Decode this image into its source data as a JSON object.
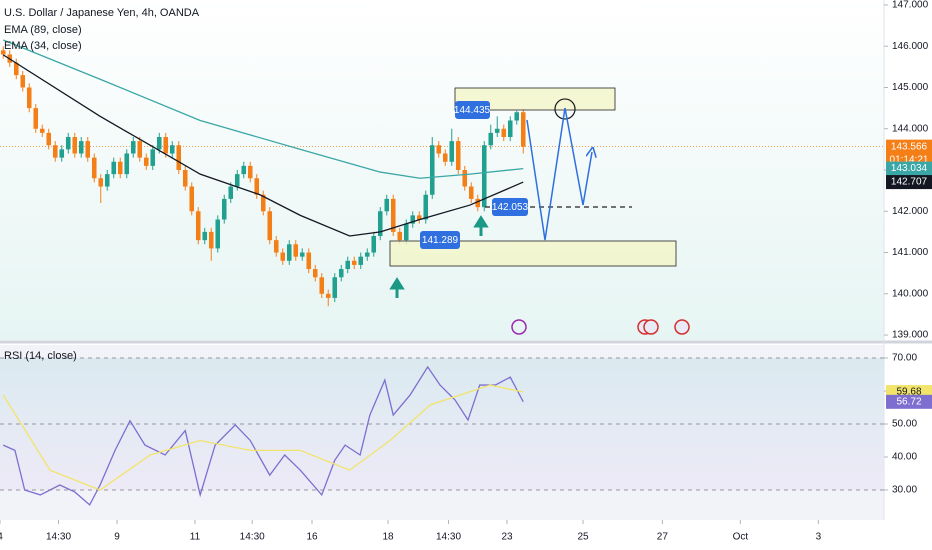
{
  "chart_data": [
    {
      "type": "candlestick",
      "title": "U.S. Dollar / Japanese Yen, 4h, OANDA",
      "up_color": "#22a08f",
      "down_color": "#f57f17",
      "ohlc": [
        [
          145.9,
          146.0,
          145.7,
          145.8
        ],
        [
          145.8,
          145.9,
          145.5,
          145.6
        ],
        [
          145.6,
          145.7,
          145.2,
          145.3
        ],
        [
          145.3,
          145.4,
          144.9,
          145.0
        ],
        [
          145.0,
          145.1,
          144.4,
          144.5
        ],
        [
          144.5,
          144.6,
          143.9,
          144.0
        ],
        [
          144.0,
          144.1,
          143.8,
          143.9
        ],
        [
          143.9,
          144.0,
          143.5,
          143.6
        ],
        [
          143.6,
          143.7,
          143.2,
          143.3
        ],
        [
          143.3,
          143.6,
          143.2,
          143.5
        ],
        [
          143.5,
          143.9,
          143.4,
          143.8
        ],
        [
          143.8,
          143.9,
          143.3,
          143.4
        ],
        [
          143.4,
          143.8,
          143.3,
          143.7
        ],
        [
          143.7,
          143.8,
          143.2,
          143.3
        ],
        [
          143.3,
          143.4,
          142.7,
          142.8
        ],
        [
          142.8,
          142.9,
          142.2,
          142.6
        ],
        [
          142.6,
          143.0,
          142.5,
          142.9
        ],
        [
          142.9,
          143.3,
          142.8,
          143.2
        ],
        [
          143.2,
          143.3,
          142.8,
          142.9
        ],
        [
          142.9,
          143.5,
          142.8,
          143.4
        ],
        [
          143.4,
          143.8,
          143.3,
          143.7
        ],
        [
          143.7,
          143.8,
          143.2,
          143.3
        ],
        [
          143.3,
          143.4,
          143.0,
          143.1
        ],
        [
          143.1,
          143.6,
          143.0,
          143.5
        ],
        [
          143.5,
          143.9,
          143.4,
          143.8
        ],
        [
          143.8,
          143.9,
          143.3,
          143.4
        ],
        [
          143.4,
          143.7,
          143.3,
          143.6
        ],
        [
          143.6,
          143.7,
          142.9,
          143.0
        ],
        [
          143.0,
          143.1,
          142.5,
          142.6
        ],
        [
          142.6,
          142.7,
          141.9,
          142.0
        ],
        [
          142.0,
          142.1,
          141.2,
          141.3
        ],
        [
          141.3,
          141.6,
          141.2,
          141.5
        ],
        [
          141.5,
          141.6,
          140.8,
          141.1
        ],
        [
          141.1,
          141.9,
          141.0,
          141.8
        ],
        [
          141.8,
          142.4,
          141.7,
          142.3
        ],
        [
          142.3,
          142.7,
          142.2,
          142.6
        ],
        [
          142.6,
          143.0,
          142.5,
          142.9
        ],
        [
          142.9,
          143.2,
          142.8,
          143.1
        ],
        [
          143.1,
          143.2,
          142.7,
          142.8
        ],
        [
          142.8,
          142.9,
          142.3,
          142.4
        ],
        [
          142.4,
          142.5,
          141.9,
          142.0
        ],
        [
          142.0,
          142.1,
          141.2,
          141.3
        ],
        [
          141.3,
          141.4,
          140.9,
          141.0
        ],
        [
          141.0,
          141.1,
          140.7,
          140.8
        ],
        [
          140.8,
          141.3,
          140.7,
          141.2
        ],
        [
          141.2,
          141.3,
          140.8,
          140.9
        ],
        [
          140.9,
          141.1,
          140.8,
          141.0
        ],
        [
          141.0,
          141.1,
          140.5,
          140.6
        ],
        [
          140.6,
          140.7,
          140.3,
          140.4
        ],
        [
          140.4,
          140.5,
          139.9,
          140.0
        ],
        [
          140.0,
          140.1,
          139.7,
          139.9
        ],
        [
          139.9,
          140.5,
          139.8,
          140.4
        ],
        [
          140.4,
          140.7,
          140.3,
          140.6
        ],
        [
          140.6,
          140.9,
          140.5,
          140.8
        ],
        [
          140.8,
          140.9,
          140.6,
          140.7
        ],
        [
          140.7,
          141.0,
          140.6,
          140.9
        ],
        [
          140.9,
          141.1,
          140.8,
          141.0
        ],
        [
          141.0,
          141.5,
          140.9,
          141.4
        ],
        [
          141.4,
          142.1,
          141.3,
          142.0
        ],
        [
          142.0,
          142.4,
          141.9,
          142.3
        ],
        [
          142.3,
          142.4,
          141.4,
          141.5
        ],
        [
          141.5,
          141.6,
          141.2,
          141.3
        ],
        [
          141.3,
          141.8,
          141.2,
          141.7
        ],
        [
          141.7,
          142.0,
          141.6,
          141.9
        ],
        [
          141.9,
          142.0,
          141.7,
          141.8
        ],
        [
          141.8,
          142.5,
          141.7,
          142.4
        ],
        [
          142.4,
          143.8,
          142.3,
          143.6
        ],
        [
          143.6,
          143.7,
          143.3,
          143.4
        ],
        [
          143.4,
          143.5,
          143.1,
          143.2
        ],
        [
          143.2,
          144.0,
          143.1,
          143.7
        ],
        [
          143.7,
          143.8,
          142.9,
          143.0
        ],
        [
          143.0,
          143.1,
          142.5,
          142.6
        ],
        [
          142.6,
          142.7,
          142.2,
          142.3
        ],
        [
          142.3,
          142.4,
          142.0,
          142.1
        ],
        [
          142.1,
          143.7,
          142.0,
          143.6
        ],
        [
          143.6,
          144.1,
          143.5,
          143.9
        ],
        [
          143.9,
          144.3,
          143.8,
          144.0
        ],
        [
          144.0,
          144.1,
          143.7,
          143.8
        ],
        [
          143.8,
          144.3,
          143.7,
          144.2
        ],
        [
          144.2,
          144.435,
          144.1,
          144.4
        ],
        [
          144.4,
          144.5,
          143.4,
          143.566
        ]
      ],
      "series": [
        {
          "name": "EMA (89, close)",
          "color": "#3aa6a6",
          "x": [
            0,
            14.9,
            30.3,
            45.7,
            58,
            64.1,
            71.8,
            80
          ],
          "values": [
            146.15,
            145.2,
            144.2,
            143.5,
            142.95,
            142.8,
            142.9,
            143.034
          ]
        },
        {
          "name": "EMA (34, close)",
          "color": "#131722",
          "x": [
            0,
            14.9,
            22.6,
            30.3,
            39.5,
            45.7,
            53.3,
            58,
            64.1,
            71.8,
            80
          ],
          "values": [
            145.79,
            144.3,
            143.6,
            142.9,
            142.4,
            141.9,
            141.4,
            141.5,
            141.8,
            142.15,
            142.707
          ]
        }
      ],
      "last_price_countdown": "01:14:21",
      "annotations": [
        144.435,
        142.053,
        141.289
      ],
      "xlim": [
        -0.5,
        135.5
      ],
      "xticks": [
        {
          "value": -0.5,
          "label": "4"
        },
        {
          "value": 8.5,
          "label": "14:30"
        },
        {
          "value": 17.5,
          "label": "9"
        },
        {
          "value": 29.5,
          "label": "11"
        },
        {
          "value": 38.3,
          "label": "14:30"
        },
        {
          "value": 47.5,
          "label": "16"
        },
        {
          "value": 59.2,
          "label": "18"
        },
        {
          "value": 68.5,
          "label": "14:30"
        },
        {
          "value": 77.5,
          "label": "23"
        },
        {
          "value": 89.2,
          "label": "25"
        },
        {
          "value": 101.4,
          "label": "27"
        },
        {
          "value": 113.4,
          "label": "Oct"
        },
        {
          "value": 125.4,
          "label": "3"
        }
      ],
      "ylim": [
        138.88,
        147.12
      ],
      "yticks": [
        {
          "value": 139,
          "label": "139.000"
        },
        {
          "value": 140,
          "label": "140.000"
        },
        {
          "value": 141,
          "label": "141.000"
        },
        {
          "value": 142,
          "label": "142.000"
        },
        {
          "value": 143,
          "label": "143.000"
        },
        {
          "value": 144,
          "label": "144.000"
        },
        {
          "value": 145,
          "label": "145.000"
        },
        {
          "value": 146,
          "label": "146.000"
        },
        {
          "value": 147,
          "label": "147.000"
        }
      ]
    },
    {
      "type": "line",
      "title": "RSI (14, close)",
      "series": [
        {
          "color": "#7e6ed0",
          "x": [
            0,
            1.8,
            3.3,
            5.7,
            8.7,
            11,
            13.3,
            14.9,
            17.2,
            19.5,
            21.8,
            24.9,
            28,
            30.3,
            32.6,
            35.7,
            38,
            41,
            43.3,
            45.7,
            49,
            51,
            52.6,
            54.9,
            56.4,
            58.7,
            60,
            62.6,
            65.3,
            67.2,
            69.5,
            71.5,
            73.3,
            75.7,
            78,
            80
          ],
          "values": [
            43.6,
            42,
            30,
            28.5,
            31.5,
            29.4,
            25.5,
            31.5,
            42,
            51,
            43.6,
            40.6,
            48,
            28.5,
            43.6,
            49.7,
            45,
            34.5,
            40.6,
            36,
            28.5,
            39,
            43.6,
            40.6,
            52.7,
            63.3,
            52.7,
            58.8,
            67.3,
            61.8,
            57.3,
            51.2,
            61.8,
            61.8,
            64.2,
            56.72
          ]
        },
        {
          "color": "#f2e46a",
          "x": [
            0,
            7.2,
            14.9,
            22.6,
            30.3,
            38,
            45.7,
            53.3,
            59.5,
            65.7,
            70.3,
            74.9,
            80
          ],
          "values": [
            58.8,
            36,
            30,
            40.6,
            45,
            42,
            42,
            36,
            45,
            55.8,
            58.8,
            61.8,
            59.68
          ]
        }
      ],
      "xlim": [
        -0.5,
        135.5
      ],
      "ylim": [
        20.9,
        73.94
      ],
      "yticks": [
        {
          "value": 30,
          "label": "30.00"
        },
        {
          "value": 40,
          "label": "40.00"
        },
        {
          "value": 50,
          "label": "50.00"
        },
        {
          "value": 60,
          "label": "60.00"
        },
        {
          "value": 70,
          "label": "70.00"
        }
      ]
    }
  ]
}
